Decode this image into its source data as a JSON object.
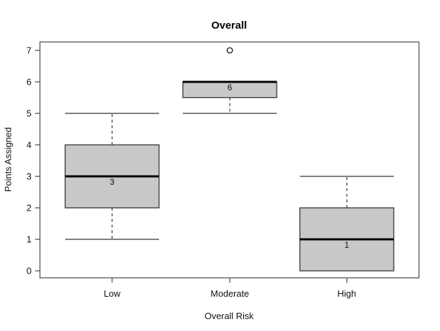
{
  "chart_data": {
    "type": "boxplot",
    "title": "Overall",
    "xlabel": "Overall Risk",
    "ylabel": "Points Assigned",
    "categories": [
      "Low",
      "Moderate",
      "High"
    ],
    "ylim": [
      0,
      7
    ],
    "yticks": [
      0,
      1,
      2,
      3,
      4,
      5,
      6,
      7
    ],
    "grid": false,
    "legend": "none",
    "colors": {
      "box_fill": "#c8c8c8",
      "box_stroke": "#333333",
      "median": "#000000",
      "axis": "#454545",
      "whisker": "#333333",
      "outlier_stroke": "#000000",
      "background": "#ffffff"
    },
    "series": [
      {
        "category": "Low",
        "whisker_low": 1,
        "q1": 2,
        "median": 3,
        "q3": 4,
        "whisker_high": 5,
        "median_label": "3",
        "outliers": []
      },
      {
        "category": "Moderate",
        "whisker_low": 5,
        "q1": 5.5,
        "median": 6,
        "q3": 6,
        "whisker_high": 6,
        "median_label": "6",
        "outliers": [
          7
        ]
      },
      {
        "category": "High",
        "whisker_low": 0,
        "q1": 0,
        "median": 1,
        "q3": 2,
        "whisker_high": 3,
        "median_label": "1",
        "outliers": []
      }
    ]
  }
}
